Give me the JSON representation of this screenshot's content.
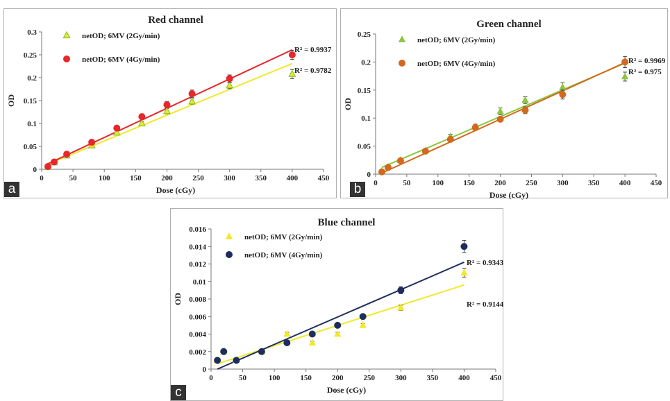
{
  "panel_labels": [
    "a",
    "b",
    "c"
  ],
  "chart_data": [
    {
      "type": "scatter",
      "title": "Red channel",
      "xlabel": "Dose (cGy)",
      "ylabel": "OD",
      "xlim": [
        0,
        450
      ],
      "ylim": [
        0,
        0.3
      ],
      "xticks": [
        "0",
        "50",
        "100",
        "150",
        "200",
        "250",
        "300",
        "350",
        "400",
        "450"
      ],
      "yticks": [
        "0",
        "0.05",
        "0.1",
        "0.15",
        "0.2",
        "0.25",
        "0.3"
      ],
      "legend_position": "top-left",
      "series": [
        {
          "name": "netOD; 6MV (2Gy/min)",
          "marker": "triangle-open",
          "color": "#8dc63f",
          "trend_color": "#f2e829",
          "x": [
            10,
            20,
            40,
            80,
            120,
            160,
            200,
            240,
            300,
            400
          ],
          "y": [
            0.005,
            0.015,
            0.03,
            0.052,
            0.08,
            0.1,
            0.127,
            0.148,
            0.183,
            0.208
          ],
          "err": [
            0.002,
            0.002,
            0.003,
            0.004,
            0.004,
            0.005,
            0.006,
            0.006,
            0.007,
            0.01
          ],
          "trend": [
            0.011,
            0.231
          ],
          "r2": "R² = 0.9782"
        },
        {
          "name": "netOD; 6MV (4Gy/min)",
          "marker": "circle",
          "color": "#e8262b",
          "trend_color": "#e8262b",
          "x": [
            10,
            20,
            40,
            80,
            120,
            160,
            200,
            240,
            300,
            400
          ],
          "y": [
            0.006,
            0.016,
            0.033,
            0.059,
            0.09,
            0.115,
            0.141,
            0.165,
            0.198,
            0.25
          ],
          "err": [
            0.002,
            0.002,
            0.003,
            0.004,
            0.004,
            0.006,
            0.007,
            0.008,
            0.008,
            0.01
          ],
          "trend": [
            0.012,
            0.261
          ],
          "r2": "R² = 0.9937"
        }
      ]
    },
    {
      "type": "scatter",
      "title": "Green channel",
      "xlabel": "Dose (cGy)",
      "ylabel": "OD",
      "xlim": [
        0,
        450
      ],
      "ylim": [
        0,
        0.25
      ],
      "xticks": [
        "0",
        "50",
        "100",
        "150",
        "200",
        "250",
        "300",
        "350",
        "400",
        "450"
      ],
      "yticks": [
        "0",
        "0.05",
        "0.1",
        "0.15",
        "0.2",
        "0.25"
      ],
      "legend_position": "top-left",
      "series": [
        {
          "name": "netOD; 6MV (2Gy/min)",
          "marker": "triangle",
          "color": "#8dc63f",
          "trend_color": "#8dc63f",
          "x": [
            10,
            20,
            40,
            80,
            120,
            160,
            200,
            240,
            300,
            400
          ],
          "y": [
            0.005,
            0.013,
            0.025,
            0.042,
            0.067,
            0.085,
            0.112,
            0.132,
            0.155,
            0.174
          ],
          "err": [
            0.002,
            0.002,
            0.002,
            0.003,
            0.004,
            0.004,
            0.006,
            0.006,
            0.008,
            0.008
          ],
          "trend": [
            0.012,
            0.198
          ],
          "r2": "R² = 0.975"
        },
        {
          "name": "netOD; 6MV (4Gy/min)",
          "marker": "circle",
          "color": "#d2691e",
          "trend_color": "#d2691e",
          "x": [
            10,
            20,
            40,
            80,
            120,
            160,
            200,
            240,
            300,
            400
          ],
          "y": [
            0.004,
            0.012,
            0.024,
            0.041,
            0.062,
            0.083,
            0.098,
            0.114,
            0.142,
            0.2
          ],
          "err": [
            0.001,
            0.002,
            0.002,
            0.002,
            0.003,
            0.004,
            0.004,
            0.006,
            0.008,
            0.01
          ],
          "trend": [
            0.002,
            0.199
          ],
          "r2": "R² = 0.9969"
        }
      ]
    },
    {
      "type": "scatter",
      "title": "Blue channel",
      "xlabel": "Dose (cGy)",
      "ylabel": "OD",
      "xlim": [
        0,
        450
      ],
      "ylim": [
        0,
        0.016
      ],
      "xticks": [
        "0",
        "50",
        "100",
        "150",
        "200",
        "250",
        "300",
        "350",
        "400",
        "450"
      ],
      "yticks": [
        "0",
        "0.002",
        "0.004",
        "0.006",
        "0.008",
        "0.01",
        "0.012",
        "0.014",
        "0.016"
      ],
      "legend_position": "top-left",
      "series": [
        {
          "name": "netOD; 6MV (2Gy/min)",
          "marker": "triangle",
          "color": "#f2e829",
          "trend_color": "#f2e829",
          "x": [
            10,
            20,
            40,
            80,
            120,
            160,
            200,
            240,
            300,
            400
          ],
          "y": [
            0.001,
            0.002,
            0.001,
            0.002,
            0.004,
            0.003,
            0.004,
            0.005,
            0.007,
            0.011
          ],
          "err": [
            0.0001,
            0.0001,
            0.0001,
            0.0001,
            0.0002,
            0.0002,
            0.0002,
            0.0002,
            0.0003,
            0.0005
          ],
          "trend": [
            0.0006,
            0.0096
          ],
          "r2": "R² = 0.9144"
        },
        {
          "name": "netOD; 6MV (4Gy/min)",
          "marker": "circle",
          "color": "#1f2d5c",
          "trend_color": "#1f2d5c",
          "x": [
            10,
            20,
            40,
            80,
            120,
            160,
            200,
            240,
            300,
            400
          ],
          "y": [
            0.001,
            0.002,
            0.001,
            0.002,
            0.003,
            0.004,
            0.005,
            0.006,
            0.009,
            0.014
          ],
          "err": [
            0.0001,
            0.0001,
            0.0001,
            0.0001,
            0.0001,
            0.0001,
            0.0002,
            0.0002,
            0.0004,
            0.0007
          ],
          "trend": [
            0.0,
            0.0122
          ],
          "r2": "R² = 0.9343"
        }
      ]
    }
  ]
}
